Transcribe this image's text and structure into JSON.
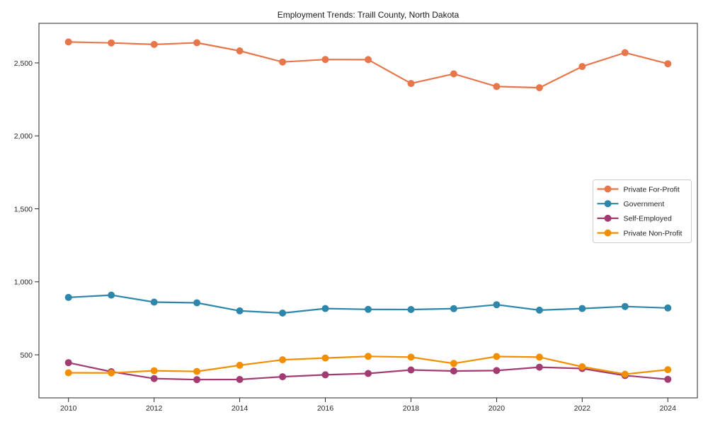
{
  "chart_data": {
    "type": "line",
    "title": "Employment Trends: Traill County, North Dakota",
    "x": [
      2010,
      2011,
      2012,
      2013,
      2014,
      2015,
      2016,
      2017,
      2018,
      2019,
      2020,
      2021,
      2022,
      2023,
      2024
    ],
    "series": [
      {
        "name": "Private For-Profit",
        "color": "#E8764B",
        "values": [
          2643,
          2637,
          2626,
          2638,
          2582,
          2506,
          2523,
          2522,
          2359,
          2425,
          2338,
          2330,
          2475,
          2570,
          2494
        ]
      },
      {
        "name": "Government",
        "color": "#2E86AB",
        "values": [
          893,
          909,
          861,
          856,
          801,
          786,
          817,
          811,
          810,
          816,
          843,
          806,
          817,
          831,
          821
        ]
      },
      {
        "name": "Self-Employed",
        "color": "#A23B72",
        "values": [
          446,
          384,
          337,
          330,
          331,
          350,
          363,
          372,
          396,
          389,
          392,
          415,
          406,
          358,
          332
        ]
      },
      {
        "name": "Private Non-Profit",
        "color": "#F18F01",
        "values": [
          377,
          376,
          391,
          386,
          428,
          466,
          478,
          489,
          484,
          441,
          488,
          484,
          418,
          367,
          398
        ]
      }
    ],
    "xlabel": "",
    "ylabel": "",
    "xticks": {
      "values": [
        2010,
        2012,
        2014,
        2016,
        2018,
        2020,
        2022,
        2024
      ],
      "labels": [
        "2010",
        "2012",
        "2014",
        "2016",
        "2018",
        "2020",
        "2022",
        "2024"
      ]
    },
    "yticks": {
      "values": [
        500,
        1000,
        1500,
        2000,
        2500
      ],
      "labels": [
        "500",
        "1,000",
        "1,500",
        "2,000",
        "2,500"
      ]
    },
    "xlim": [
      2009.31,
      2024.69
    ],
    "ylim": [
      205,
      2771
    ],
    "grid": false,
    "legend": {
      "position": "right-center",
      "entries": [
        "Private For-Profit",
        "Government",
        "Self-Employed",
        "Private Non-Profit"
      ]
    },
    "frame_color": "#262626",
    "background_color": "#ffffff"
  }
}
